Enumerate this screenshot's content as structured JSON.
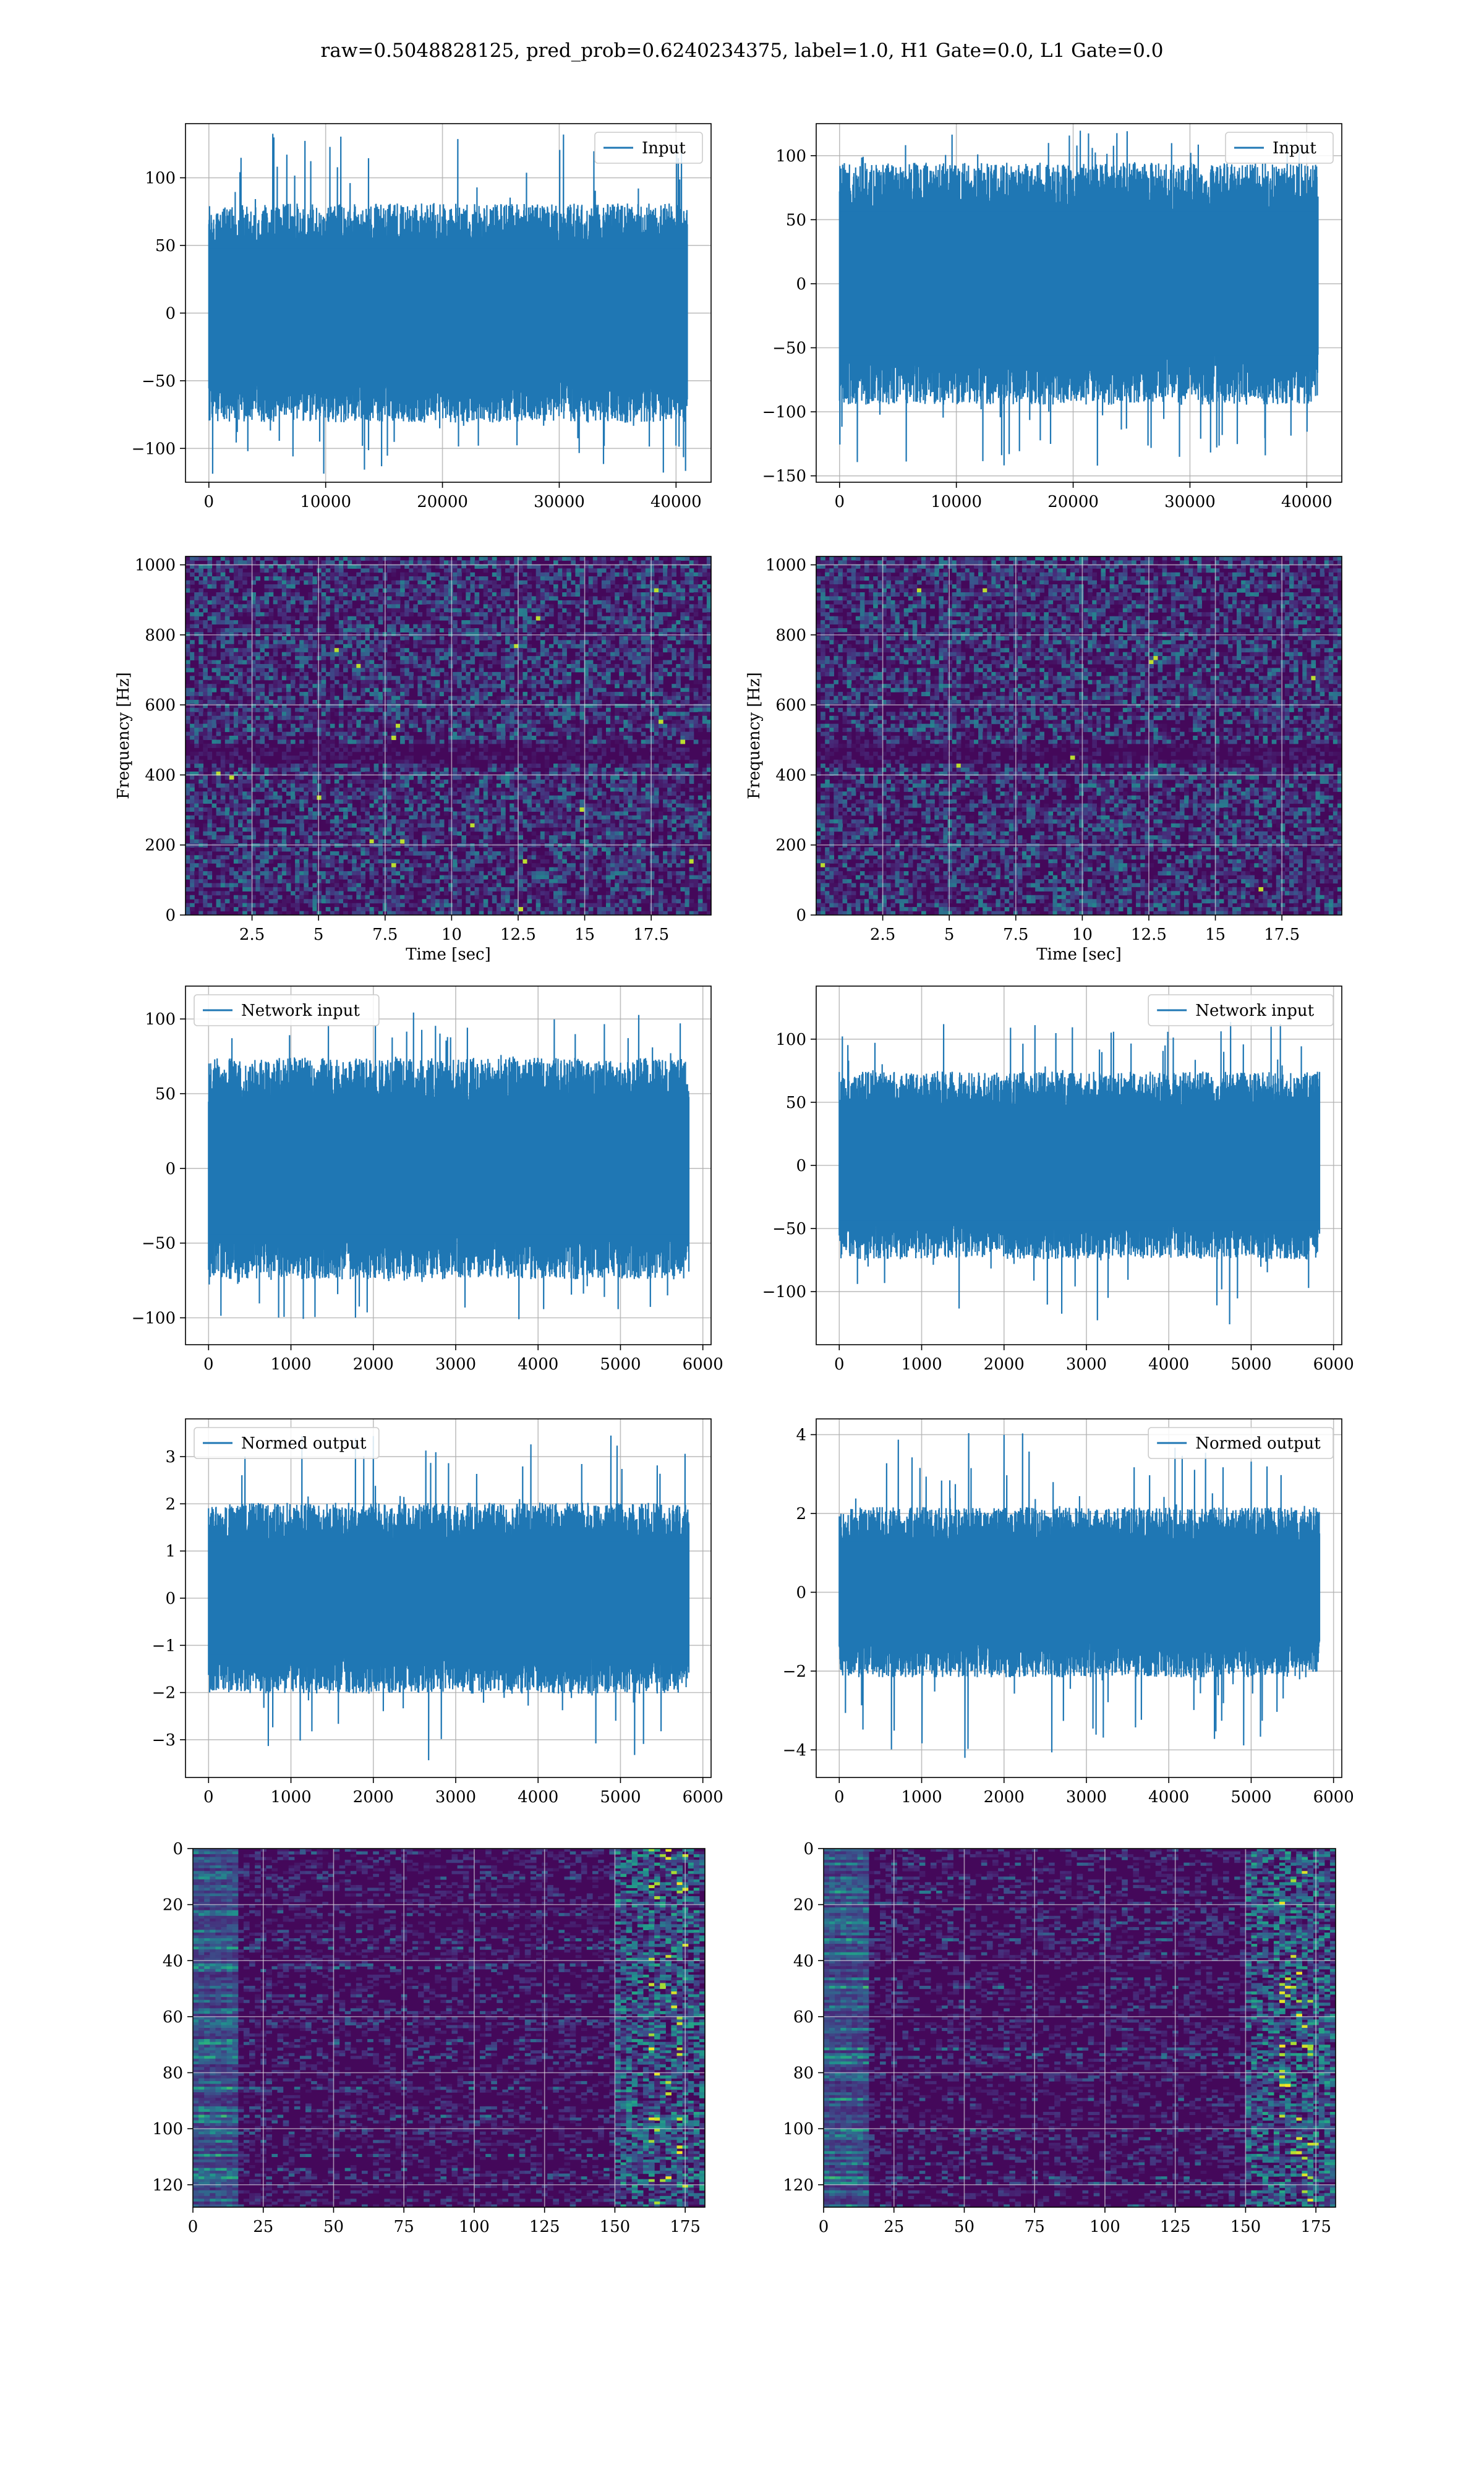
{
  "title": "raw=0.5048828125, pred_prob=0.6240234375, label=1.0, H1 Gate=0.0, L1 Gate=0.0",
  "colors": {
    "line": "#1f77b4",
    "grid": "#b0b0b0",
    "axes": "#000000"
  },
  "chart_data": [
    {
      "id": "r0c0",
      "type": "line",
      "title": "",
      "legend": [
        "Input"
      ],
      "legend_loc": "upper right",
      "xlabel": "",
      "ylabel": "",
      "xlim": [
        -2000,
        43000
      ],
      "ylim": [
        -125,
        140
      ],
      "xticks": [
        0,
        10000,
        20000,
        30000,
        40000
      ],
      "yticks": [
        -100,
        -50,
        0,
        50,
        100
      ],
      "signal": {
        "x_start": 0,
        "x_end": 40960,
        "core_min": -60,
        "core_max": 60,
        "peak_max": 135,
        "peak_min": -120
      },
      "grid": true
    },
    {
      "id": "r0c1",
      "type": "line",
      "title": "",
      "legend": [
        "Input"
      ],
      "legend_loc": "upper right",
      "xlabel": "",
      "ylabel": "",
      "xlim": [
        -2000,
        43000
      ],
      "ylim": [
        -155,
        125
      ],
      "xticks": [
        0,
        10000,
        20000,
        30000,
        40000
      ],
      "yticks": [
        -150,
        -100,
        -50,
        0,
        50,
        100
      ],
      "signal": {
        "x_start": 0,
        "x_end": 40960,
        "core_min": -70,
        "core_max": 70,
        "peak_max": 122,
        "peak_min": -145
      },
      "grid": true
    },
    {
      "id": "r1c0",
      "type": "heatmap",
      "title": "",
      "xlabel": "Time [sec]",
      "ylabel": "Frequency [Hz]",
      "xlim": [
        0,
        19.75
      ],
      "ylim": [
        0,
        1024
      ],
      "xticks": [
        2.5,
        5.0,
        7.5,
        10.0,
        12.5,
        15.0,
        17.5
      ],
      "yticks": [
        0,
        200,
        400,
        600,
        800,
        1000
      ],
      "colormap": "viridis",
      "grid": true
    },
    {
      "id": "r1c1",
      "type": "heatmap",
      "title": "",
      "xlabel": "Time [sec]",
      "ylabel": "Frequency [Hz]",
      "xlim": [
        0,
        19.75
      ],
      "ylim": [
        0,
        1024
      ],
      "xticks": [
        2.5,
        5.0,
        7.5,
        10.0,
        12.5,
        15.0,
        17.5
      ],
      "yticks": [
        0,
        200,
        400,
        600,
        800,
        1000
      ],
      "colormap": "viridis",
      "grid": true
    },
    {
      "id": "r2c0",
      "type": "line",
      "title": "",
      "legend": [
        "Network input"
      ],
      "legend_loc": "upper left",
      "xlabel": "",
      "ylabel": "",
      "xlim": [
        -280,
        6100
      ],
      "ylim": [
        -118,
        122
      ],
      "xticks": [
        0,
        1000,
        2000,
        3000,
        4000,
        5000,
        6000
      ],
      "yticks": [
        -100,
        -50,
        0,
        50,
        100
      ],
      "signal": {
        "x_start": 0,
        "x_end": 5830,
        "core_min": -55,
        "core_max": 55,
        "peak_max": 110,
        "peak_min": -105
      },
      "grid": true
    },
    {
      "id": "r2c1",
      "type": "line",
      "title": "",
      "legend": [
        "Network input"
      ],
      "legend_loc": "upper right",
      "xlabel": "",
      "ylabel": "",
      "xlim": [
        -280,
        6100
      ],
      "ylim": [
        -142,
        142
      ],
      "xticks": [
        0,
        1000,
        2000,
        3000,
        4000,
        5000,
        6000
      ],
      "yticks": [
        -100,
        -50,
        0,
        50,
        100
      ],
      "signal": {
        "x_start": 0,
        "x_end": 5830,
        "core_min": -55,
        "core_max": 55,
        "peak_max": 115,
        "peak_min": -128
      },
      "grid": true
    },
    {
      "id": "r3c0",
      "type": "line",
      "title": "",
      "legend": [
        "Normed output"
      ],
      "legend_loc": "upper left",
      "xlabel": "",
      "ylabel": "",
      "xlim": [
        -280,
        6100
      ],
      "ylim": [
        -3.8,
        3.8
      ],
      "xticks": [
        0,
        1000,
        2000,
        3000,
        4000,
        5000,
        6000
      ],
      "yticks": [
        -3,
        -2,
        -1,
        0,
        1,
        2,
        3
      ],
      "signal": {
        "x_start": 0,
        "x_end": 5830,
        "core_min": -1.5,
        "core_max": 1.5,
        "peak_max": 3.5,
        "peak_min": -3.5
      },
      "grid": true
    },
    {
      "id": "r3c1",
      "type": "line",
      "title": "",
      "legend": [
        "Normed output"
      ],
      "legend_loc": "upper right",
      "xlabel": "",
      "ylabel": "",
      "xlim": [
        -280,
        6100
      ],
      "ylim": [
        -4.7,
        4.4
      ],
      "xticks": [
        0,
        1000,
        2000,
        3000,
        4000,
        5000,
        6000
      ],
      "yticks": [
        -4,
        -2,
        0,
        2,
        4
      ],
      "signal": {
        "x_start": 0,
        "x_end": 5830,
        "core_min": -1.6,
        "core_max": 1.6,
        "peak_max": 4.2,
        "peak_min": -4.3
      },
      "grid": true
    },
    {
      "id": "r4c0",
      "type": "heatmap",
      "title": "",
      "xlabel": "",
      "ylabel": "",
      "xlim": [
        0,
        182
      ],
      "ylim": [
        128,
        0
      ],
      "xticks": [
        0,
        25,
        50,
        75,
        100,
        125,
        150,
        175
      ],
      "yticks": [
        0,
        20,
        40,
        60,
        80,
        100,
        120
      ],
      "colormap": "viridis",
      "grid": true
    },
    {
      "id": "r4c1",
      "type": "heatmap",
      "title": "",
      "xlabel": "",
      "ylabel": "",
      "xlim": [
        0,
        182
      ],
      "ylim": [
        128,
        0
      ],
      "xticks": [
        0,
        25,
        50,
        75,
        100,
        125,
        150,
        175
      ],
      "yticks": [
        0,
        20,
        40,
        60,
        80,
        100,
        120
      ],
      "colormap": "viridis",
      "grid": true
    }
  ]
}
